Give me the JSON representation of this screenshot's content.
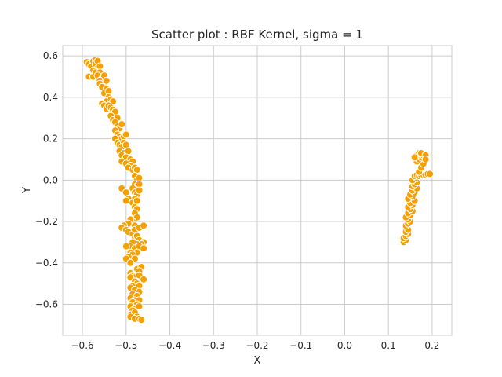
{
  "chart_data": {
    "type": "scatter",
    "title": "Scatter plot : RBF Kernel, sigma = 1",
    "xlabel": "X",
    "ylabel": "Y",
    "xlim": [
      -0.645,
      0.245
    ],
    "ylim": [
      -0.75,
      0.65
    ],
    "xticks": [
      -0.6,
      -0.5,
      -0.4,
      -0.3,
      -0.2,
      -0.1,
      0.0,
      0.1,
      0.2
    ],
    "xtick_labels": [
      "−0.6",
      "−0.5",
      "−0.4",
      "−0.3",
      "−0.2",
      "−0.1",
      "0.0",
      "0.1",
      "0.2"
    ],
    "yticks": [
      -0.6,
      -0.4,
      -0.2,
      0.0,
      0.2,
      0.4,
      0.6
    ],
    "ytick_labels": [
      "−0.6",
      "−0.4",
      "−0.2",
      "0.0",
      "0.2",
      "0.4",
      "0.6"
    ],
    "grid": true,
    "colors": {
      "marker": "#f5a000",
      "marker_edge": "#ffffff"
    },
    "series": [
      {
        "points": [
          [
            -0.59,
            0.57
          ],
          [
            -0.585,
            0.56
          ],
          [
            -0.58,
            0.55
          ],
          [
            -0.575,
            0.575
          ],
          [
            -0.57,
            0.58
          ],
          [
            -0.57,
            0.56
          ],
          [
            -0.565,
            0.575
          ],
          [
            -0.565,
            0.54
          ],
          [
            -0.575,
            0.53
          ],
          [
            -0.585,
            0.5
          ],
          [
            -0.575,
            0.5
          ],
          [
            -0.57,
            0.52
          ],
          [
            -0.56,
            0.55
          ],
          [
            -0.56,
            0.52
          ],
          [
            -0.565,
            0.505
          ],
          [
            -0.555,
            0.49
          ],
          [
            -0.55,
            0.505
          ],
          [
            -0.56,
            0.48
          ],
          [
            -0.55,
            0.47
          ],
          [
            -0.545,
            0.48
          ],
          [
            -0.56,
            0.465
          ],
          [
            -0.555,
            0.45
          ],
          [
            -0.545,
            0.44
          ],
          [
            -0.55,
            0.42
          ],
          [
            -0.54,
            0.43
          ],
          [
            -0.54,
            0.4
          ],
          [
            -0.545,
            0.38
          ],
          [
            -0.535,
            0.39
          ],
          [
            -0.53,
            0.38
          ],
          [
            -0.555,
            0.37
          ],
          [
            -0.55,
            0.36
          ],
          [
            -0.545,
            0.345
          ],
          [
            -0.54,
            0.36
          ],
          [
            -0.535,
            0.35
          ],
          [
            -0.53,
            0.34
          ],
          [
            -0.525,
            0.33
          ],
          [
            -0.535,
            0.31
          ],
          [
            -0.53,
            0.29
          ],
          [
            -0.52,
            0.3
          ],
          [
            -0.525,
            0.28
          ],
          [
            -0.52,
            0.26
          ],
          [
            -0.515,
            0.25
          ],
          [
            -0.51,
            0.27
          ],
          [
            -0.525,
            0.24
          ],
          [
            -0.52,
            0.22
          ],
          [
            -0.515,
            0.21
          ],
          [
            -0.51,
            0.2
          ],
          [
            -0.505,
            0.21
          ],
          [
            -0.5,
            0.22
          ],
          [
            -0.525,
            0.2
          ],
          [
            -0.52,
            0.18
          ],
          [
            -0.515,
            0.17
          ],
          [
            -0.505,
            0.18
          ],
          [
            -0.51,
            0.16
          ],
          [
            -0.5,
            0.17
          ],
          [
            -0.515,
            0.14
          ],
          [
            -0.505,
            0.13
          ],
          [
            -0.51,
            0.12
          ],
          [
            -0.495,
            0.14
          ],
          [
            -0.5,
            0.11
          ],
          [
            -0.51,
            0.09
          ],
          [
            -0.49,
            0.1
          ],
          [
            -0.5,
            0.08
          ],
          [
            -0.485,
            0.09
          ],
          [
            -0.49,
            0.07
          ],
          [
            -0.495,
            0.06
          ],
          [
            -0.485,
            0.05
          ],
          [
            -0.48,
            0.06
          ],
          [
            -0.475,
            0.05
          ],
          [
            -0.48,
            0.02
          ],
          [
            -0.475,
            0.0
          ],
          [
            -0.47,
            0.01
          ],
          [
            -0.48,
            -0.02
          ],
          [
            -0.475,
            -0.03
          ],
          [
            -0.47,
            -0.02
          ],
          [
            -0.485,
            -0.04
          ],
          [
            -0.51,
            -0.04
          ],
          [
            -0.5,
            -0.06
          ],
          [
            -0.48,
            -0.06
          ],
          [
            -0.475,
            -0.07
          ],
          [
            -0.47,
            -0.05
          ],
          [
            -0.48,
            -0.09
          ],
          [
            -0.495,
            -0.09
          ],
          [
            -0.5,
            -0.1
          ],
          [
            -0.485,
            -0.11
          ],
          [
            -0.475,
            -0.1
          ],
          [
            -0.48,
            -0.13
          ],
          [
            -0.475,
            -0.14
          ],
          [
            -0.48,
            -0.16
          ],
          [
            -0.475,
            -0.18
          ],
          [
            -0.485,
            -0.2
          ],
          [
            -0.48,
            -0.22
          ],
          [
            -0.49,
            -0.19
          ],
          [
            -0.495,
            -0.21
          ],
          [
            -0.505,
            -0.22
          ],
          [
            -0.51,
            -0.23
          ],
          [
            -0.5,
            -0.24
          ],
          [
            -0.495,
            -0.25
          ],
          [
            -0.485,
            -0.26
          ],
          [
            -0.48,
            -0.24
          ],
          [
            -0.47,
            -0.23
          ],
          [
            -0.46,
            -0.22
          ],
          [
            -0.48,
            -0.28
          ],
          [
            -0.475,
            -0.27
          ],
          [
            -0.47,
            -0.29
          ],
          [
            -0.46,
            -0.3
          ],
          [
            -0.465,
            -0.31
          ],
          [
            -0.475,
            -0.31
          ],
          [
            -0.485,
            -0.3
          ],
          [
            -0.49,
            -0.32
          ],
          [
            -0.5,
            -0.32
          ],
          [
            -0.48,
            -0.33
          ],
          [
            -0.47,
            -0.32
          ],
          [
            -0.46,
            -0.33
          ],
          [
            -0.475,
            -0.35
          ],
          [
            -0.49,
            -0.35
          ],
          [
            -0.485,
            -0.36
          ],
          [
            -0.495,
            -0.37
          ],
          [
            -0.5,
            -0.38
          ],
          [
            -0.48,
            -0.38
          ],
          [
            -0.49,
            -0.4
          ],
          [
            -0.475,
            -0.43
          ],
          [
            -0.465,
            -0.42
          ],
          [
            -0.47,
            -0.44
          ],
          [
            -0.49,
            -0.45
          ],
          [
            -0.485,
            -0.46
          ],
          [
            -0.48,
            -0.47
          ],
          [
            -0.47,
            -0.46
          ],
          [
            -0.46,
            -0.48
          ],
          [
            -0.49,
            -0.47
          ],
          [
            -0.48,
            -0.49
          ],
          [
            -0.475,
            -0.5
          ],
          [
            -0.485,
            -0.51
          ],
          [
            -0.47,
            -0.51
          ],
          [
            -0.49,
            -0.52
          ],
          [
            -0.48,
            -0.53
          ],
          [
            -0.47,
            -0.54
          ],
          [
            -0.485,
            -0.55
          ],
          [
            -0.475,
            -0.56
          ],
          [
            -0.49,
            -0.57
          ],
          [
            -0.48,
            -0.58
          ],
          [
            -0.47,
            -0.58
          ],
          [
            -0.485,
            -0.59
          ],
          [
            -0.475,
            -0.6
          ],
          [
            -0.49,
            -0.61
          ],
          [
            -0.48,
            -0.62
          ],
          [
            -0.47,
            -0.61
          ],
          [
            -0.485,
            -0.63
          ],
          [
            -0.49,
            -0.65
          ],
          [
            -0.48,
            -0.64
          ],
          [
            -0.475,
            -0.66
          ],
          [
            -0.49,
            -0.66
          ],
          [
            -0.48,
            -0.67
          ],
          [
            -0.47,
            -0.67
          ],
          [
            -0.465,
            -0.675
          ],
          [
            0.135,
            -0.3
          ],
          [
            0.14,
            -0.29
          ],
          [
            0.135,
            -0.28
          ],
          [
            0.14,
            -0.27
          ],
          [
            0.145,
            -0.26
          ],
          [
            0.14,
            -0.25
          ],
          [
            0.145,
            -0.24
          ],
          [
            0.14,
            -0.22
          ],
          [
            0.145,
            -0.21
          ],
          [
            0.15,
            -0.2
          ],
          [
            0.145,
            -0.19
          ],
          [
            0.14,
            -0.18
          ],
          [
            0.15,
            -0.17
          ],
          [
            0.145,
            -0.16
          ],
          [
            0.155,
            -0.15
          ],
          [
            0.15,
            -0.14
          ],
          [
            0.145,
            -0.13
          ],
          [
            0.155,
            -0.12
          ],
          [
            0.15,
            -0.11
          ],
          [
            0.16,
            -0.1
          ],
          [
            0.145,
            -0.09
          ],
          [
            0.155,
            -0.08
          ],
          [
            0.15,
            -0.07
          ],
          [
            0.16,
            -0.06
          ],
          [
            0.155,
            -0.05
          ],
          [
            0.165,
            -0.04
          ],
          [
            0.155,
            -0.03
          ],
          [
            0.16,
            -0.02
          ],
          [
            0.165,
            -0.01
          ],
          [
            0.155,
            0.0
          ],
          [
            0.165,
            0.01
          ],
          [
            0.16,
            0.02
          ],
          [
            0.165,
            0.025
          ],
          [
            0.17,
            0.02
          ],
          [
            0.175,
            0.025
          ],
          [
            0.18,
            0.025
          ],
          [
            0.185,
            0.025
          ],
          [
            0.19,
            0.03
          ],
          [
            0.195,
            0.03
          ],
          [
            0.17,
            0.04
          ],
          [
            0.175,
            0.06
          ],
          [
            0.18,
            0.08
          ],
          [
            0.165,
            0.09
          ],
          [
            0.17,
            0.1
          ],
          [
            0.175,
            0.11
          ],
          [
            0.18,
            0.12
          ],
          [
            0.165,
            0.12
          ],
          [
            0.17,
            0.13
          ],
          [
            0.175,
            0.13
          ],
          [
            0.185,
            0.12
          ],
          [
            0.185,
            0.1
          ],
          [
            0.16,
            0.11
          ]
        ]
      }
    ]
  }
}
